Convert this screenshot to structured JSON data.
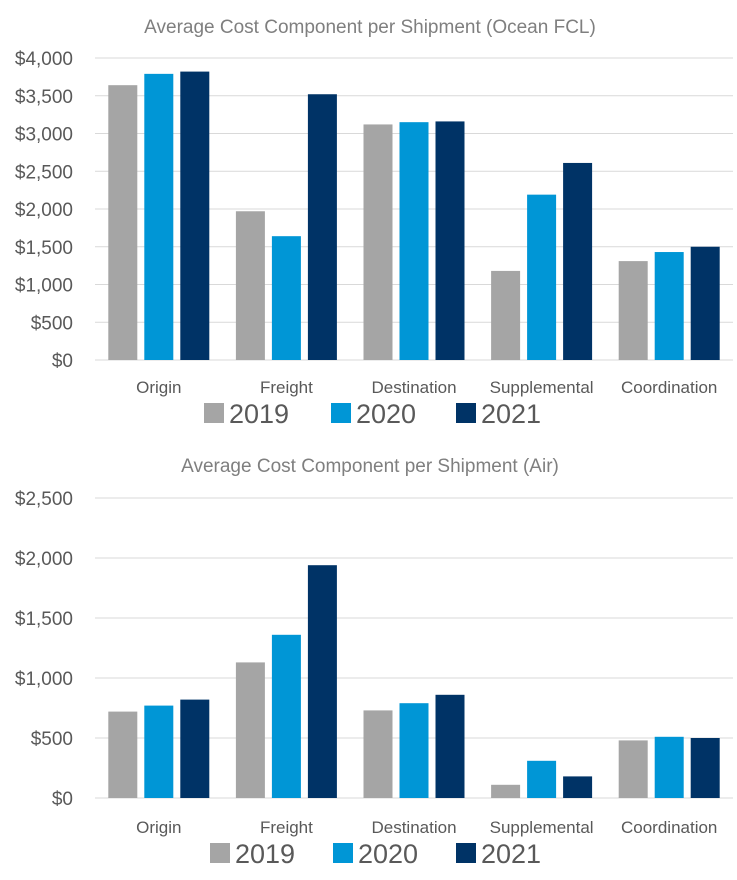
{
  "colors": {
    "2019": "#a5a5a5",
    "2020": "#0096d6",
    "2021": "#003366"
  },
  "chart_data": [
    {
      "type": "bar",
      "title": "Average Cost Component per Shipment (Ocean FCL)",
      "categories": [
        "Origin",
        "Freight",
        "Destination",
        "Supplemental",
        "Coordination"
      ],
      "series": [
        {
          "name": "2019",
          "values": [
            3640,
            1970,
            3120,
            1180,
            1310
          ]
        },
        {
          "name": "2020",
          "values": [
            3790,
            1640,
            3150,
            2190,
            1430
          ]
        },
        {
          "name": "2021",
          "values": [
            3820,
            3520,
            3160,
            2610,
            1500
          ]
        }
      ],
      "ylim": [
        0,
        4000
      ],
      "yticks": [
        "$0",
        "$500",
        "$1,000",
        "$1,500",
        "$2,000",
        "$2,500",
        "$3,000",
        "$3,500",
        "$4,000"
      ],
      "grid": true,
      "legend": "bottom"
    },
    {
      "type": "bar",
      "title": "Average Cost Component per Shipment (Air)",
      "categories": [
        "Origin",
        "Freight",
        "Destination",
        "Supplemental",
        "Coordination"
      ],
      "series": [
        {
          "name": "2019",
          "values": [
            720,
            1130,
            730,
            110,
            480
          ]
        },
        {
          "name": "2020",
          "values": [
            770,
            1360,
            790,
            310,
            510
          ]
        },
        {
          "name": "2021",
          "values": [
            820,
            1940,
            860,
            180,
            500
          ]
        }
      ],
      "ylim": [
        0,
        2500
      ],
      "yticks": [
        "$0",
        "$500",
        "$1,000",
        "$1,500",
        "$2,000",
        "$2,500"
      ],
      "grid": true,
      "legend": "bottom"
    }
  ]
}
